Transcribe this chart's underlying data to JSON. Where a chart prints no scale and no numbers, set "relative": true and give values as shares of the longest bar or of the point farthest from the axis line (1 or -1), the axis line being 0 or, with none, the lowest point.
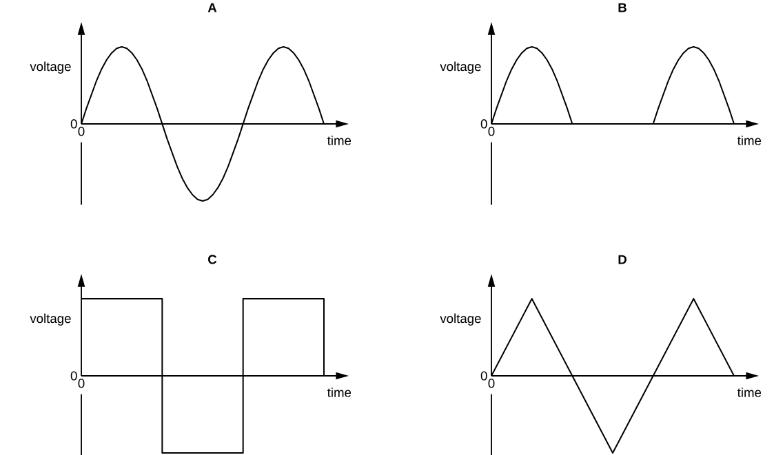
{
  "chart_data": [
    {
      "type": "line",
      "title": "A",
      "xlabel": "time",
      "ylabel": "voltage",
      "relative": true,
      "annotations": [
        "0",
        "0"
      ],
      "categories": [
        null,
        null,
        null,
        null,
        null,
        null,
        null,
        null,
        null,
        null,
        null,
        null,
        null,
        null,
        null,
        null,
        null,
        null,
        null,
        null,
        null,
        null,
        null,
        null,
        null,
        null,
        null,
        null,
        null,
        null,
        null,
        null,
        null,
        null,
        null,
        null,
        null,
        null,
        null,
        null,
        null,
        null,
        null,
        null,
        null,
        null,
        null,
        null,
        null
      ],
      "color": "#000000",
      "values": [
        0,
        0.2,
        0.38,
        0.56,
        0.71,
        0.83,
        0.92,
        0.98,
        1,
        0.98,
        0.92,
        0.83,
        0.71,
        0.56,
        0.38,
        0.2,
        0,
        -0.2,
        -0.38,
        -0.56,
        -0.71,
        -0.83,
        -0.92,
        -0.98,
        -1,
        -0.98,
        -0.92,
        -0.83,
        -0.71,
        -0.56,
        -0.38,
        -0.2,
        0,
        0.2,
        0.38,
        0.56,
        0.71,
        0.83,
        0.92,
        0.98,
        1,
        0.98,
        0.92,
        0.83,
        0.71,
        0.56,
        0.38,
        0.2,
        0
      ]
    },
    {
      "type": "line",
      "title": "B",
      "xlabel": "time",
      "ylabel": "voltage",
      "relative": true,
      "annotations": [
        "0",
        "0"
      ],
      "categories": [
        null,
        null,
        null,
        null,
        null,
        null,
        null,
        null,
        null,
        null,
        null,
        null,
        null,
        null,
        null,
        null,
        null,
        null,
        null,
        null,
        null,
        null,
        null,
        null,
        null,
        null,
        null,
        null,
        null,
        null,
        null,
        null,
        null,
        null,
        null,
        null,
        null,
        null,
        null,
        null,
        null,
        null,
        null,
        null,
        null,
        null,
        null,
        null,
        null
      ],
      "color": "#000000",
      "values": [
        0,
        0.2,
        0.38,
        0.56,
        0.71,
        0.83,
        0.92,
        0.98,
        1,
        0.98,
        0.92,
        0.83,
        0.71,
        0.56,
        0.38,
        0.2,
        0,
        0,
        0,
        0,
        0,
        0,
        0,
        0,
        0,
        0,
        0,
        0,
        0,
        0,
        0,
        0,
        0,
        0.2,
        0.38,
        0.56,
        0.71,
        0.83,
        0.92,
        0.98,
        1,
        0.98,
        0.92,
        0.83,
        0.71,
        0.56,
        0.38,
        0.2,
        0
      ]
    },
    {
      "type": "step",
      "title": "C",
      "xlabel": "time",
      "ylabel": "voltage",
      "relative": true,
      "annotations": [
        "0",
        "0"
      ],
      "categories": [
        null,
        null,
        null,
        null
      ],
      "color": "#000000",
      "values": [
        1,
        -1,
        1,
        0
      ]
    },
    {
      "type": "line",
      "title": "D",
      "xlabel": "time",
      "ylabel": "voltage",
      "relative": true,
      "annotations": [
        "0",
        "0"
      ],
      "categories": [
        null,
        null,
        null,
        null,
        null,
        null,
        null
      ],
      "color": "#000000",
      "values": [
        0,
        1,
        0,
        -1,
        0,
        1,
        0
      ]
    }
  ]
}
